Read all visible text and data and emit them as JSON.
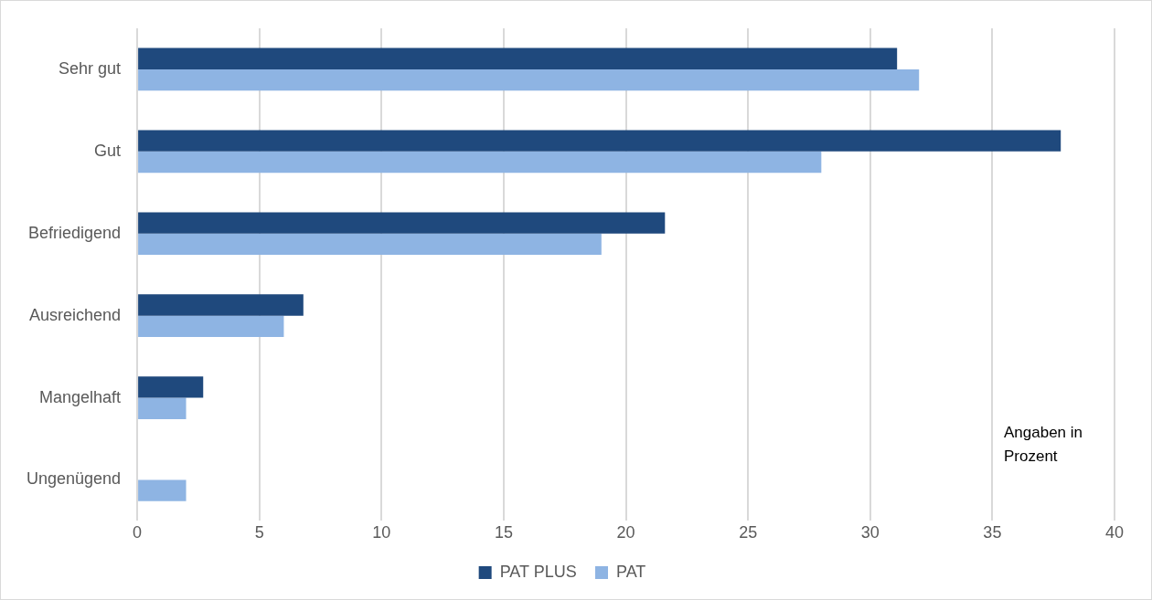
{
  "chart_data": {
    "type": "bar",
    "orientation": "horizontal",
    "categories": [
      "Sehr gut",
      "Gut",
      "Befriedigend",
      "Ausreichend",
      "Mangelhaft",
      "Ungenügend"
    ],
    "series": [
      {
        "name": "PAT PLUS",
        "color": "#1f497d",
        "values": [
          31.1,
          37.8,
          21.6,
          6.8,
          2.7,
          null
        ]
      },
      {
        "name": "PAT",
        "color": "#8eb4e3",
        "values": [
          32,
          28,
          19,
          6,
          2,
          2
        ]
      }
    ],
    "xlim": [
      0,
      40
    ],
    "xticks": [
      0,
      5,
      10,
      15,
      20,
      25,
      30,
      35,
      40
    ],
    "grid": "x",
    "legend": "bottom",
    "annotations": [
      "Angaben in Prozent"
    ]
  }
}
